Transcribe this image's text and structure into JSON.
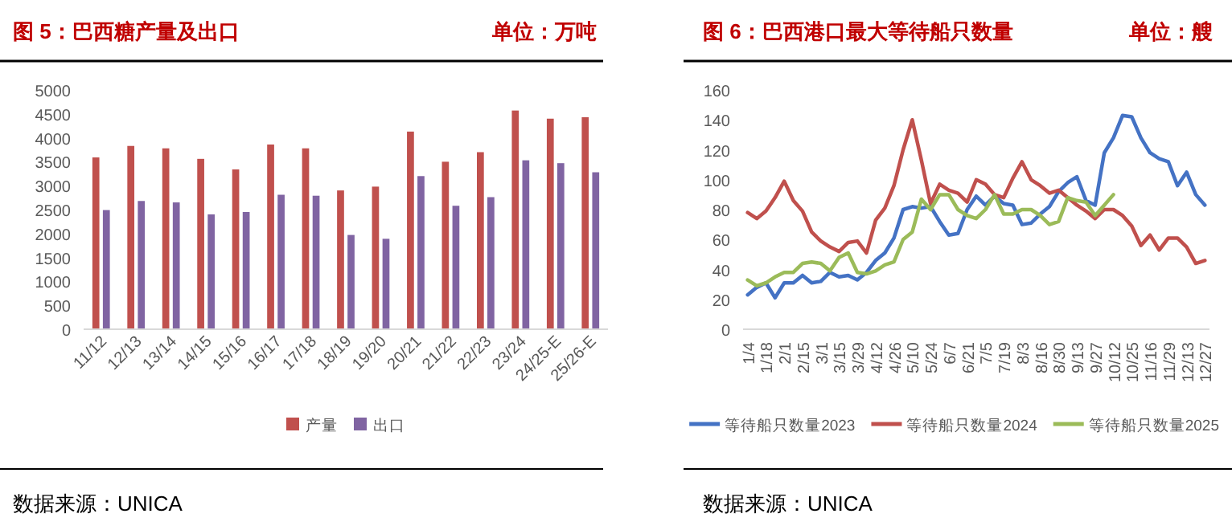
{
  "chart_data": [
    {
      "type": "bar",
      "title": "图 5：巴西糖产量及出口",
      "subtitle": "单位：万吨",
      "categories": [
        "11/12",
        "12/13",
        "13/14",
        "14/15",
        "15/16",
        "16/17",
        "17/18",
        "18/19",
        "19/20",
        "20/21",
        "21/22",
        "22/23",
        "23/24",
        "24/25-E",
        "25/26-E"
      ],
      "series": [
        {
          "name": "产量",
          "color": "#c0504d",
          "values": [
            3590,
            3830,
            3780,
            3560,
            3340,
            3860,
            3780,
            2900,
            2980,
            4130,
            3500,
            3700,
            4570,
            4400,
            4430
          ]
        },
        {
          "name": "出口",
          "color": "#8064a2",
          "values": [
            2490,
            2680,
            2650,
            2400,
            2450,
            2810,
            2790,
            1970,
            1890,
            3200,
            2580,
            2760,
            3530,
            3470,
            3280
          ]
        }
      ],
      "ylim": [
        0,
        5000
      ],
      "yticks": [
        0,
        500,
        1000,
        1500,
        2000,
        2500,
        3000,
        3500,
        4000,
        4500,
        5000
      ],
      "legend": "bottom",
      "annotations": [
        "数据来源：UNICA"
      ]
    },
    {
      "type": "line",
      "title": "图 6：巴西港口最大等待船只数量",
      "subtitle": "单位：艘",
      "categories": [
        "1/4",
        null,
        "1/18",
        null,
        "2/1",
        null,
        "2/15",
        null,
        "3/1",
        null,
        "3/15",
        null,
        "3/29",
        null,
        "4/12",
        null,
        "4/26",
        null,
        "5/10",
        null,
        "5/24",
        null,
        "6/7",
        null,
        "6/21",
        null,
        "7/5",
        null,
        "7/19",
        null,
        "8/3",
        null,
        "8/16",
        null,
        "8/30",
        null,
        "9/13",
        null,
        "9/27",
        null,
        "10/12",
        null,
        "10/25",
        null,
        "11/16",
        null,
        "11/29",
        null,
        "12/13",
        null,
        "12/27"
      ],
      "series": [
        {
          "name": "等待船只数量2023",
          "color": "#4472c4",
          "values": [
            23,
            28,
            31,
            21,
            31,
            31,
            36,
            31,
            32,
            38,
            35,
            36,
            33,
            38,
            46,
            51,
            61,
            80,
            82,
            81,
            82,
            72,
            63,
            64,
            80,
            89,
            83,
            89,
            84,
            83,
            70,
            71,
            77,
            82,
            92,
            98,
            102,
            86,
            83,
            118,
            128,
            143,
            142,
            128,
            118,
            114,
            112,
            96,
            105,
            90,
            83
          ]
        },
        {
          "name": "等待船只数量2024",
          "color": "#c0504d",
          "values": [
            78,
            74,
            79,
            88,
            99,
            86,
            79,
            65,
            59,
            55,
            52,
            58,
            59,
            51,
            73,
            81,
            96,
            120,
            140,
            113,
            84,
            97,
            93,
            91,
            85,
            100,
            97,
            90,
            88,
            101,
            112,
            100,
            96,
            91,
            93,
            88,
            83,
            79,
            74,
            80,
            80,
            76,
            69,
            56,
            63,
            53,
            61,
            61,
            55,
            44,
            46
          ]
        },
        {
          "name": "等待船只数量2025",
          "color": "#9bbb59",
          "values": [
            33,
            29,
            31,
            35,
            38,
            38,
            44,
            45,
            44,
            39,
            48,
            51,
            38,
            37,
            39,
            43,
            45,
            60,
            65,
            87,
            80,
            90,
            90,
            80,
            76,
            74,
            80,
            90,
            77,
            77,
            80,
            80,
            76,
            70,
            72,
            88,
            86,
            85,
            76,
            83,
            90,
            null,
            null,
            null,
            null,
            null,
            null,
            null,
            null,
            null,
            null
          ]
        }
      ],
      "ylim": [
        0,
        160
      ],
      "yticks": [
        0,
        20,
        40,
        60,
        80,
        100,
        120,
        140,
        160
      ],
      "legend": "bottom",
      "line_style": "solid",
      "annotations": [
        "数据来源：UNICA"
      ]
    }
  ]
}
